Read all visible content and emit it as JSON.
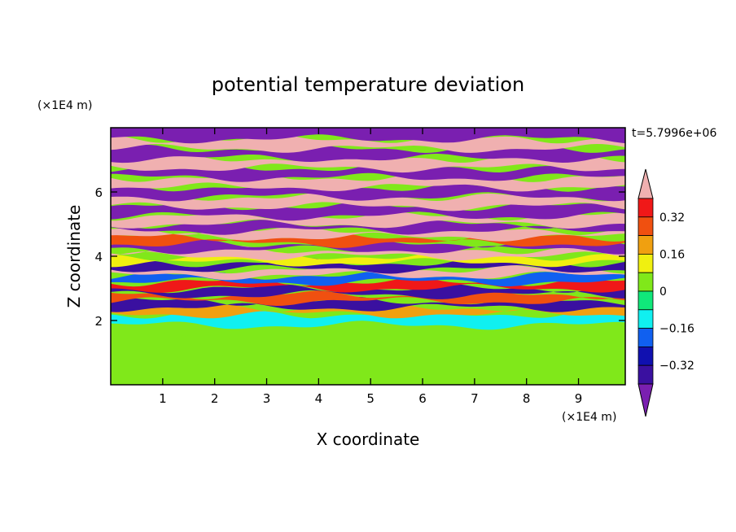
{
  "chart_data": {
    "type": "heatmap",
    "title": "potential temperature deviation",
    "xlabel": "X coordinate",
    "ylabel": "Z coordinate",
    "x_unit": "(×1E4 m)",
    "y_unit": "(×1E4 m)",
    "time_label": "t=5.7996e+06",
    "xlim": [
      0,
      9.9
    ],
    "ylim": [
      0,
      8.0
    ],
    "x_ticks": [
      "1",
      "2",
      "3",
      "4",
      "5",
      "6",
      "7",
      "8",
      "9"
    ],
    "y_ticks": [
      "2",
      "4",
      "6"
    ],
    "grid": false,
    "colorbar": {
      "placement": "right",
      "levels": [
        -0.4,
        -0.32,
        -0.24,
        -0.16,
        -0.08,
        0,
        0.08,
        0.16,
        0.24,
        0.32,
        0.4
      ],
      "colors": [
        "#7a1fb0",
        "#3a10a0",
        "#1010b0",
        "#1060f0",
        "#10f0f0",
        "#10e87a",
        "#80e81a",
        "#f0f010",
        "#f0a010",
        "#f05010",
        "#f01818",
        "#f0b0b0"
      ],
      "labels": [
        "0.32",
        "0.16",
        "0",
        "−0.16",
        "−0.32"
      ]
    },
    "bands": [
      {
        "z": 0.4,
        "value": 0.02
      },
      {
        "z": 1.0,
        "value": 0.04
      },
      {
        "z": 1.6,
        "value": 0.0
      },
      {
        "z": 2.1,
        "value": -0.15
      },
      {
        "z": 2.3,
        "value": 0.2
      },
      {
        "z": 2.5,
        "value": -0.35
      },
      {
        "z": 2.7,
        "value": 0.3
      },
      {
        "z": 2.9,
        "value": -0.38
      },
      {
        "z": 3.1,
        "value": 0.35
      },
      {
        "z": 3.3,
        "value": -0.2
      },
      {
        "z": 3.5,
        "value": 0.42
      },
      {
        "z": 3.7,
        "value": -0.4
      },
      {
        "z": 3.9,
        "value": 0.1
      },
      {
        "z": 4.1,
        "value": 0.42
      },
      {
        "z": 4.3,
        "value": -0.42
      },
      {
        "z": 4.5,
        "value": 0.3
      },
      {
        "z": 4.7,
        "value": 0.42
      },
      {
        "z": 4.9,
        "value": -0.42
      },
      {
        "z": 5.1,
        "value": 0.42
      },
      {
        "z": 5.4,
        "value": -0.42
      },
      {
        "z": 5.7,
        "value": 0.42
      },
      {
        "z": 6.0,
        "value": -0.42
      },
      {
        "z": 6.3,
        "value": 0.42
      },
      {
        "z": 6.6,
        "value": -0.42
      },
      {
        "z": 6.9,
        "value": 0.42
      },
      {
        "z": 7.2,
        "value": -0.42
      },
      {
        "z": 7.5,
        "value": 0.42
      },
      {
        "z": 7.8,
        "value": -0.42
      }
    ]
  }
}
